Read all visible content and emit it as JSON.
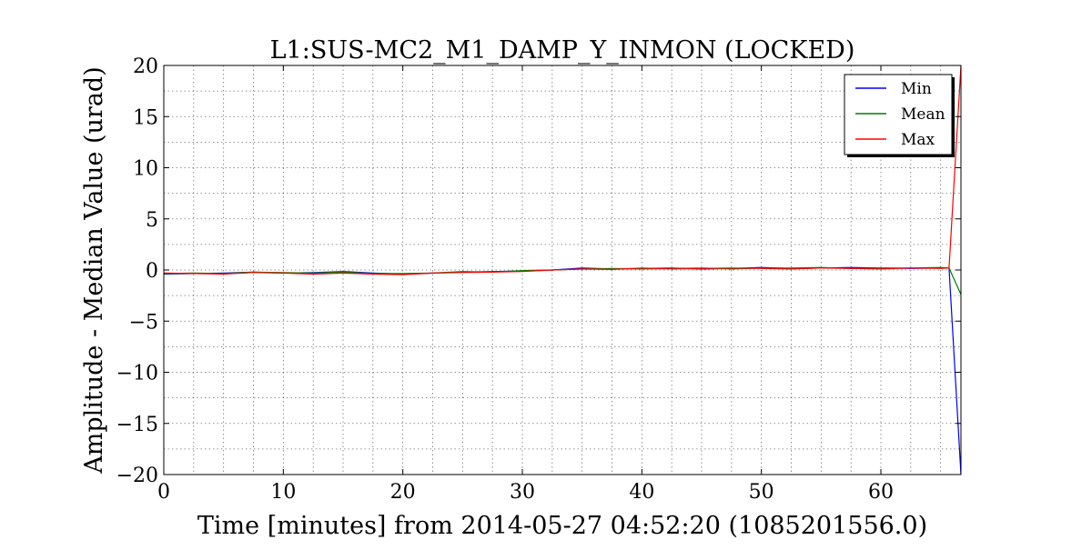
{
  "chart_data": {
    "type": "line",
    "title": "L1:SUS-MC2_M1_DAMP_Y_INMON (LOCKED)",
    "xlabel": "Time [minutes] from 2014-05-27 04:52:20 (1085201556.0)",
    "ylabel": "Amplitude - Median Value (urad)",
    "xlim": [
      0,
      66.7
    ],
    "ylim": [
      -20,
      20
    ],
    "x_ticks": [
      0,
      10,
      20,
      30,
      40,
      50,
      60
    ],
    "x_tick_labels": [
      "0",
      "10",
      "20",
      "30",
      "40",
      "50",
      "60"
    ],
    "y_ticks": [
      20,
      15,
      10,
      5,
      0,
      -5,
      -10,
      -15,
      -20
    ],
    "y_tick_labels": [
      "20",
      "15",
      "10",
      "5",
      "0",
      "−5",
      "−10",
      "−15",
      "−20"
    ],
    "grid": true,
    "legend_position": "top-right",
    "x": [
      0,
      2.5,
      5,
      7.5,
      10,
      12.5,
      15,
      17.5,
      20,
      22.5,
      25,
      27.5,
      30,
      32.5,
      35,
      37.5,
      40,
      42.5,
      45,
      47.5,
      50,
      52.5,
      55,
      57.5,
      60,
      62.5,
      65,
      65.7,
      66.7
    ],
    "series": [
      {
        "name": "Min",
        "color": "#0000ff",
        "values": [
          -0.4,
          -0.35,
          -0.3,
          -0.2,
          -0.3,
          -0.25,
          -0.15,
          -0.3,
          -0.4,
          -0.3,
          -0.2,
          -0.15,
          -0.1,
          0.0,
          0.2,
          0.1,
          0.15,
          0.2,
          0.1,
          0.15,
          0.25,
          0.15,
          0.2,
          0.25,
          0.2,
          0.15,
          0.2,
          0.2,
          -20
        ]
      },
      {
        "name": "Mean",
        "color": "#008000",
        "values": [
          -0.35,
          -0.3,
          -0.35,
          -0.2,
          -0.25,
          -0.3,
          -0.2,
          -0.35,
          -0.35,
          -0.3,
          -0.15,
          -0.2,
          -0.05,
          0.0,
          0.1,
          0.15,
          0.1,
          0.15,
          0.2,
          0.1,
          0.2,
          0.2,
          0.25,
          0.15,
          0.2,
          0.2,
          0.25,
          0.2,
          -2.4
        ]
      },
      {
        "name": "Max",
        "color": "#ff0000",
        "values": [
          -0.3,
          -0.35,
          -0.4,
          -0.25,
          -0.3,
          -0.4,
          -0.3,
          -0.4,
          -0.45,
          -0.3,
          -0.25,
          -0.2,
          -0.15,
          0.0,
          0.1,
          0.05,
          0.2,
          0.1,
          0.15,
          0.2,
          0.15,
          0.1,
          0.2,
          0.15,
          0.1,
          0.2,
          0.15,
          0.2,
          20
        ]
      }
    ]
  }
}
